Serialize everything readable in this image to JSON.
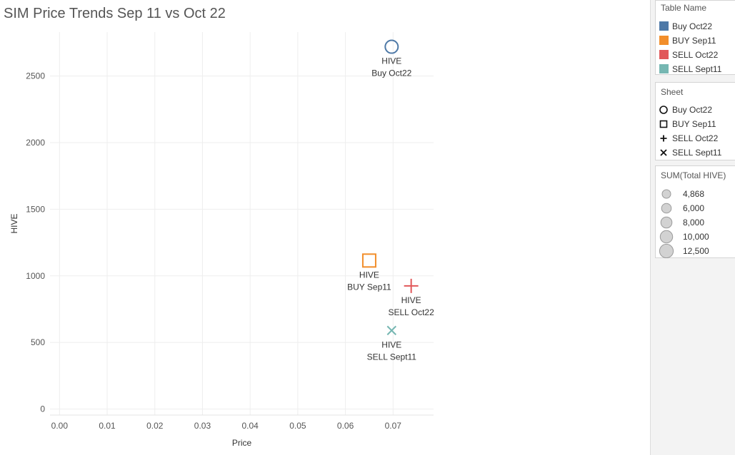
{
  "title": "SIM Price Trends Sep 11 vs Oct 22",
  "chart_data": {
    "type": "scatter",
    "title": "SIM Price Trends Sep 11 vs Oct 22",
    "xlabel": "Price",
    "ylabel": "HIVE",
    "xlim": [
      -0.002,
      0.0785
    ],
    "ylim": [
      -45,
      2830
    ],
    "xticks": [
      "0.00",
      "0.01",
      "0.02",
      "0.03",
      "0.04",
      "0.05",
      "0.06",
      "0.07"
    ],
    "xtick_values": [
      0.0,
      0.01,
      0.02,
      0.03,
      0.04,
      0.05,
      0.06,
      0.07
    ],
    "yticks": [
      "0",
      "500",
      "1000",
      "1500",
      "2000",
      "2500"
    ],
    "ytick_values": [
      0,
      500,
      1000,
      1500,
      2000,
      2500
    ],
    "grid": true,
    "points": [
      {
        "series": "Buy Oct22",
        "x": 0.0697,
        "y": 2720,
        "shape": "circle",
        "color": "#4e79a7",
        "label_top": "HIVE",
        "label_bottom": "Buy Oct22",
        "size": 4868
      },
      {
        "series": "BUY Sep11",
        "x": 0.065,
        "y": 1115,
        "shape": "square",
        "color": "#f28e2b",
        "label_top": "HIVE",
        "label_bottom": "BUY Sep11",
        "size": 6000
      },
      {
        "series": "SELL Oct22",
        "x": 0.0738,
        "y": 925,
        "shape": "plus",
        "color": "#e15759",
        "label_top": "HIVE",
        "label_bottom": "SELL Oct22",
        "size": 8000
      },
      {
        "series": "SELL Sept11",
        "x": 0.0697,
        "y": 590,
        "shape": "cross",
        "color": "#76b7b2",
        "label_top": "HIVE",
        "label_bottom": "SELL Sept11",
        "size": 4868
      }
    ]
  },
  "legends": {
    "color": {
      "title": "Table Name",
      "items": [
        {
          "label": "Buy Oct22",
          "color": "#4e79a7"
        },
        {
          "label": "BUY Sep11",
          "color": "#f28e2b"
        },
        {
          "label": "SELL Oct22",
          "color": "#e15759"
        },
        {
          "label": "SELL Sept11",
          "color": "#76b7b2"
        }
      ]
    },
    "shape": {
      "title": "Sheet",
      "items": [
        {
          "label": "Buy Oct22",
          "icon": "circle-icon"
        },
        {
          "label": "BUY Sep11",
          "icon": "square-icon"
        },
        {
          "label": "SELL Oct22",
          "icon": "plus-icon"
        },
        {
          "label": "SELL Sept11",
          "icon": "cross-icon"
        }
      ]
    },
    "size": {
      "title": "SUM(Total HIVE)",
      "items": [
        {
          "label": "4,868",
          "value": 4868
        },
        {
          "label": "6,000",
          "value": 6000
        },
        {
          "label": "8,000",
          "value": 8000
        },
        {
          "label": "10,000",
          "value": 10000
        },
        {
          "label": "12,500",
          "value": 12500
        }
      ]
    }
  }
}
